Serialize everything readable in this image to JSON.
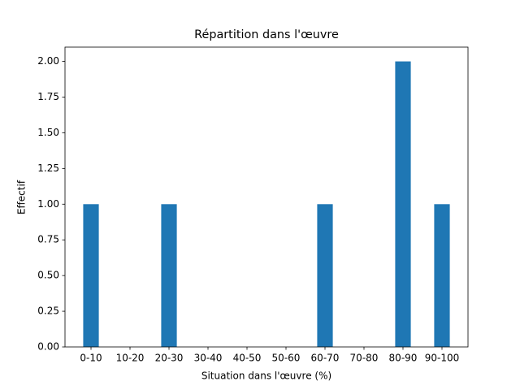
{
  "chart_data": {
    "type": "bar",
    "title": "Répartition dans l'œuvre",
    "xlabel": "Situation dans l'œuvre (%)",
    "ylabel": "Effectif",
    "categories": [
      "0-10",
      "10-20",
      "20-30",
      "30-40",
      "40-50",
      "50-60",
      "60-70",
      "70-80",
      "80-90",
      "90-100"
    ],
    "values": [
      1,
      0,
      1,
      0,
      0,
      0,
      1,
      0,
      2,
      1
    ],
    "color": "#1f77b4",
    "ylim": [
      0,
      2.1
    ],
    "yticks": [
      {
        "value": 0,
        "label": "0.00"
      },
      {
        "value": 0.25,
        "label": "0.25"
      },
      {
        "value": 0.5,
        "label": "0.50"
      },
      {
        "value": 0.75,
        "label": "0.75"
      },
      {
        "value": 1,
        "label": "1.00"
      },
      {
        "value": 1.25,
        "label": "1.25"
      },
      {
        "value": 1.5,
        "label": "1.50"
      },
      {
        "value": 1.75,
        "label": "1.75"
      },
      {
        "value": 2,
        "label": "2.00"
      }
    ],
    "grid": false
  }
}
